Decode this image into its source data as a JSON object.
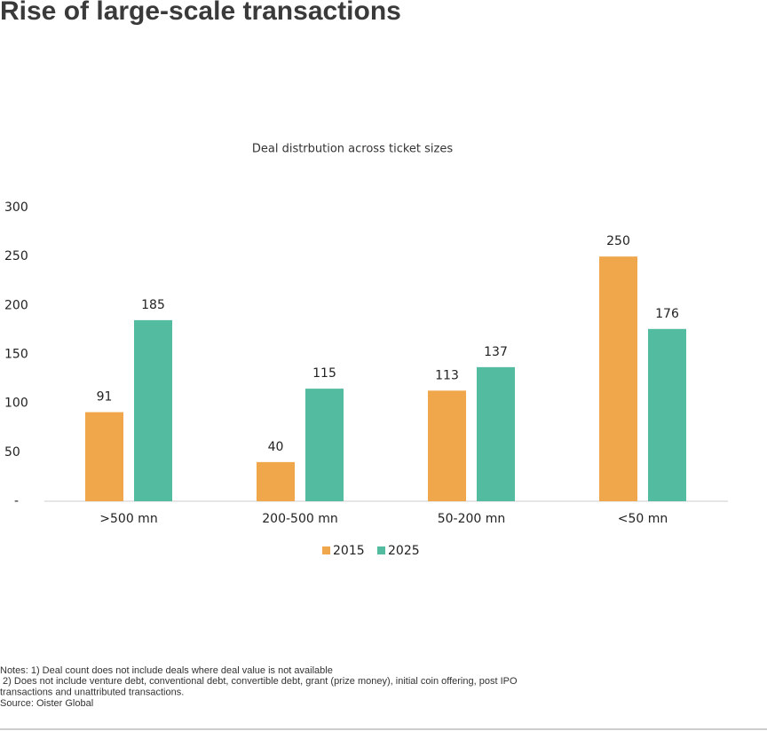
{
  "chart_data": {
    "type": "bar",
    "title": "Rise of large-scale transactions",
    "subtitle": "Deal distrbution across ticket sizes",
    "categories": [
      ">500 mn",
      "200-500 mn",
      "50-200 mn",
      "<50 mn"
    ],
    "series": [
      {
        "name": "2015",
        "color": "#f0a64a",
        "values": [
          91,
          40,
          113,
          250
        ]
      },
      {
        "name": "2025",
        "color": "#52bba0",
        "values": [
          185,
          115,
          137,
          176
        ]
      }
    ],
    "ylim": [
      0,
      300
    ],
    "yticks": [
      {
        "value": 0,
        "label": "-"
      },
      50,
      100,
      150,
      200,
      250,
      300
    ],
    "grid": false,
    "legend": "bottom",
    "notes": [
      "Notes: 1) Deal count does not include deals where deal value is not available",
      " 2) Does not include venture debt, conventional debt, convertible debt, grant (prize money), initial coin offering, post IPO",
      "transactions and unattributed transactions.",
      "Source: Oister Global"
    ]
  }
}
